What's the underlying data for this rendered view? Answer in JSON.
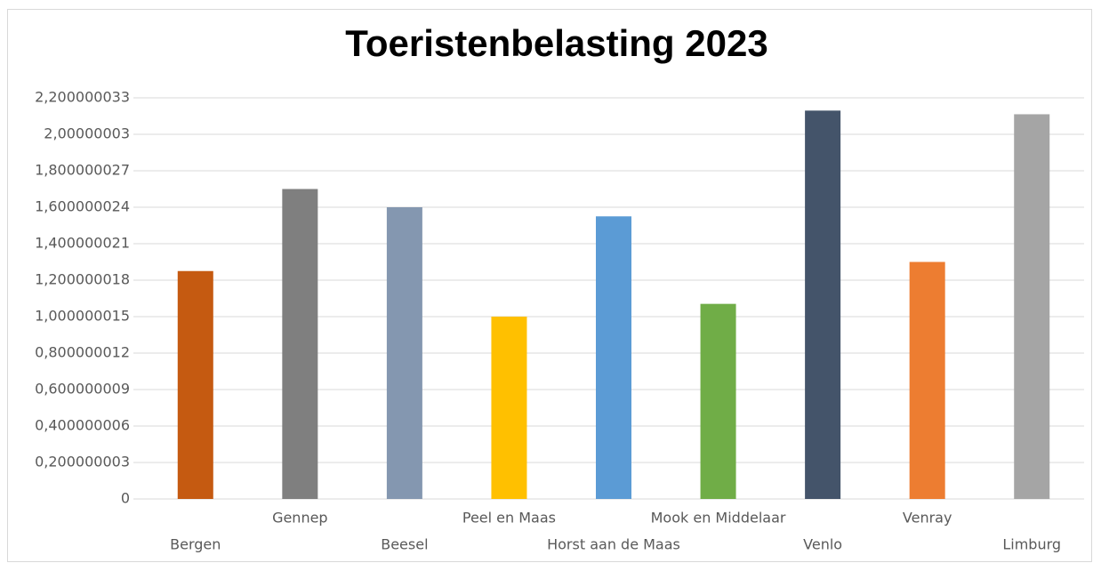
{
  "chart_data": {
    "type": "bar",
    "title": "Toeristenbelasting 2023",
    "categories": [
      "Bergen",
      "Gennep",
      "Beesel",
      "Peel en Maas",
      "Horst aan de Maas",
      "Mook en Middelaar",
      "Venlo",
      "Venray",
      "Limburg"
    ],
    "values": [
      1.25,
      1.7,
      1.6,
      1.0,
      1.55,
      1.07,
      2.13,
      1.3,
      2.11
    ],
    "colors": [
      "#c55a11",
      "#7f7f7f",
      "#8497b0",
      "#ffc000",
      "#5b9bd5",
      "#70ad47",
      "#44546a",
      "#ed7d31",
      "#a5a5a5"
    ],
    "ylim": [
      0,
      2.200000033
    ],
    "yticks": [
      0,
      {
        "value": 0.200000003,
        "label": "0,200000003"
      },
      {
        "value": 0.400000006,
        "label": "0,400000006"
      },
      {
        "value": 0.600000009,
        "label": "0,600000009"
      },
      {
        "value": 0.800000012,
        "label": "0,800000012"
      },
      {
        "value": 1.000000015,
        "label": "1,000000015"
      },
      {
        "value": 1.200000018,
        "label": "1,200000018"
      },
      {
        "value": 1.400000021,
        "label": "1,400000021"
      },
      {
        "value": 1.600000024,
        "label": "1,600000024"
      },
      {
        "value": 1.800000027,
        "label": "1,800000027"
      },
      {
        "value": 2.00000003,
        "label": "2,00000003"
      },
      {
        "value": 2.200000033,
        "label": "2,200000033"
      }
    ],
    "grid": true
  }
}
